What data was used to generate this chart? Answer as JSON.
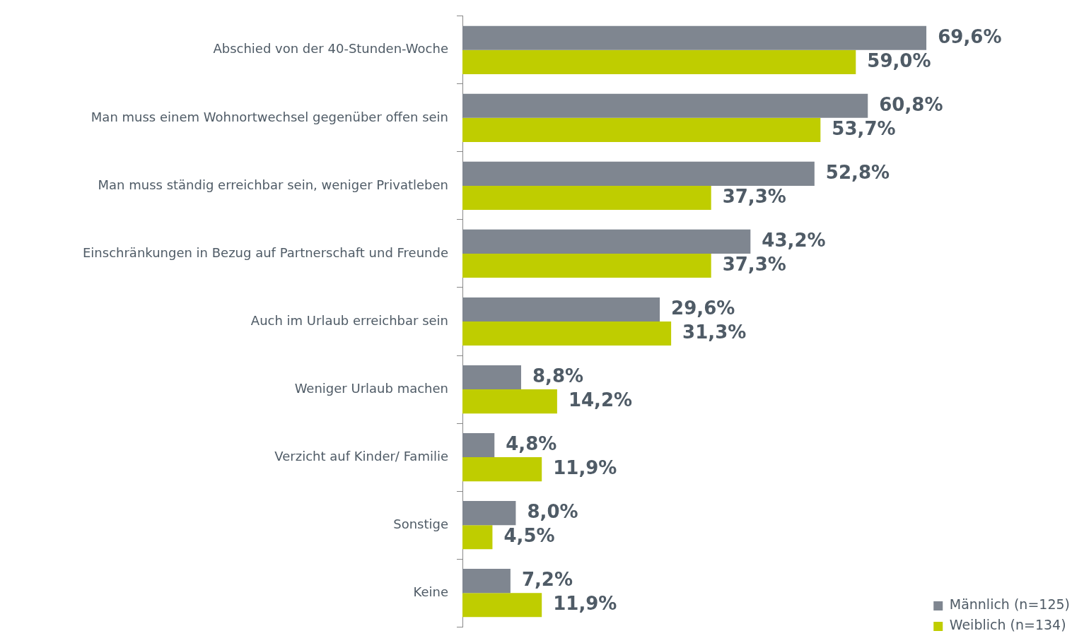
{
  "chart_data": {
    "type": "bar",
    "orientation": "horizontal",
    "legend": "bottom right",
    "categories": [
      "Abschied von der 40-Stunden-Woche",
      "Man muss einem Wohnortwechsel gegenüber offen sein",
      "Man muss ständig erreichbar sein, weniger Privatleben",
      "Einschränkungen in Bezug auf Partnerschaft und Freunde",
      "Auch im Urlaub erreichbar sein",
      "Weniger Urlaub machen",
      "Verzicht auf Kinder/ Familie",
      "Sonstige",
      "Keine"
    ],
    "series": [
      {
        "name": "Männlich (n=125)",
        "color": "#7f8690",
        "values": [
          69.6,
          60.8,
          52.8,
          43.2,
          29.6,
          8.8,
          4.8,
          8.0,
          7.2
        ],
        "value_labels": [
          "69,6%",
          "60,8%",
          "52,8%",
          "43,2%",
          "29,6%",
          "8,8%",
          "4,8%",
          "8,0%",
          "7,2%"
        ]
      },
      {
        "name": "Weiblich (n=134)",
        "color": "#bfcd00",
        "values": [
          59.0,
          53.7,
          37.3,
          37.3,
          31.3,
          14.2,
          11.9,
          4.5,
          11.9
        ],
        "value_labels": [
          "59,0%",
          "53,7%",
          "37,3%",
          "37,3%",
          "31,3%",
          "14,2%",
          "11,9%",
          "4,5%",
          "11,9%"
        ]
      }
    ]
  }
}
